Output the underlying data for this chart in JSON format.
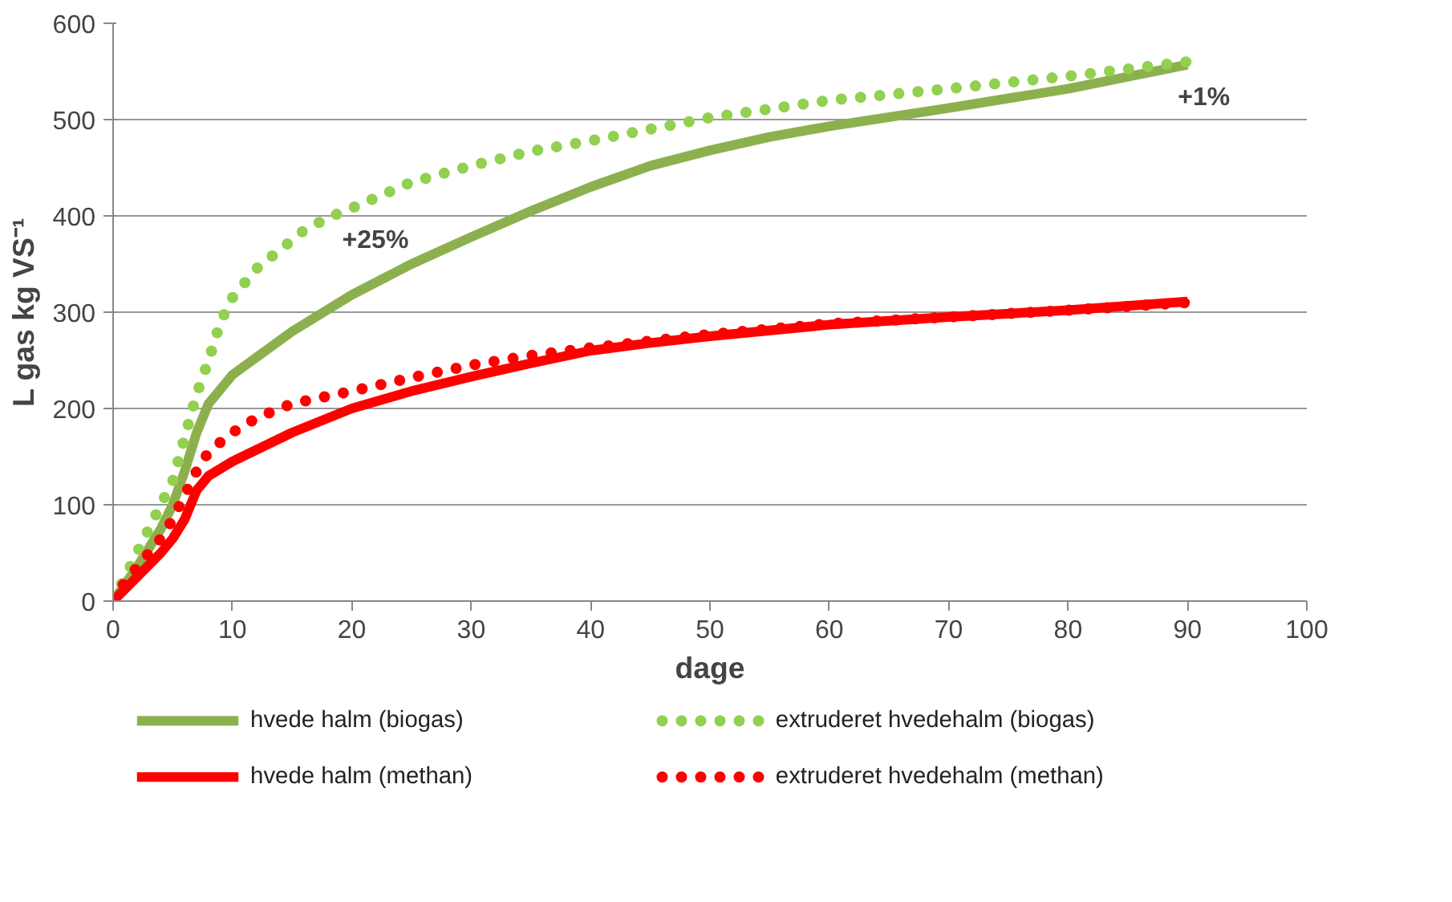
{
  "chart_data": {
    "type": "line",
    "xlabel": "dage",
    "ylabel": "L gas kg VS⁻¹",
    "xlim": [
      0,
      100
    ],
    "xticks": [
      0,
      10,
      20,
      30,
      40,
      50,
      60,
      70,
      80,
      90,
      100
    ],
    "ylim": [
      0,
      600
    ],
    "yticks": [
      0,
      100,
      200,
      300,
      400,
      500,
      600
    ],
    "grid": "y",
    "legend": "bottom",
    "marker": "none",
    "annotations": [
      {
        "text": "+25%",
        "x": 20,
        "y": 408
      },
      {
        "text": "+1%",
        "x": 90,
        "y": 557
      }
    ],
    "series": [
      {
        "name": "hvede halm (biogas)",
        "color": "#8db04f",
        "line_style": "solid",
        "x": [
          0,
          2,
          4,
          5,
          6,
          7,
          8,
          10,
          15,
          20,
          25,
          30,
          35,
          40,
          45,
          50,
          55,
          60,
          70,
          80,
          90
        ],
        "values": [
          0,
          35,
          75,
          100,
          135,
          175,
          205,
          235,
          280,
          318,
          350,
          378,
          405,
          430,
          452,
          468,
          482,
          493,
          512,
          532,
          557
        ]
      },
      {
        "name": "extruderet hvedehalm (biogas)",
        "color": "#92d050",
        "line_style": "dotted",
        "x": [
          0,
          1,
          2,
          3,
          4,
          5,
          6,
          7,
          8,
          9,
          10,
          12,
          14,
          16,
          18,
          20,
          25,
          30,
          35,
          40,
          45,
          50,
          60,
          70,
          80,
          90
        ],
        "values": [
          0,
          25,
          50,
          75,
          100,
          125,
          170,
          215,
          250,
          290,
          315,
          345,
          365,
          385,
          398,
          408,
          435,
          452,
          467,
          478,
          490,
          502,
          520,
          532,
          545,
          560
        ]
      },
      {
        "name": "hvede halm (methan)",
        "color": "#ff0000",
        "line_style": "solid",
        "x": [
          0,
          2,
          4,
          5,
          6,
          7,
          8,
          10,
          15,
          20,
          25,
          30,
          35,
          40,
          45,
          50,
          60,
          70,
          80,
          90
        ],
        "values": [
          0,
          25,
          50,
          65,
          85,
          115,
          130,
          145,
          175,
          200,
          218,
          233,
          247,
          260,
          268,
          275,
          287,
          295,
          302,
          311
        ]
      },
      {
        "name": "extruderet hvedehalm (methan)",
        "color": "#ff0000",
        "line_style": "dotted",
        "x": [
          0,
          1,
          2,
          3,
          4,
          5,
          6,
          7,
          8,
          10,
          12,
          15,
          20,
          25,
          30,
          35,
          40,
          50,
          60,
          70,
          80,
          90
        ],
        "values": [
          0,
          20,
          35,
          50,
          65,
          85,
          110,
          135,
          155,
          175,
          190,
          205,
          218,
          232,
          245,
          255,
          263,
          277,
          288,
          295,
          302,
          310
        ]
      }
    ]
  }
}
